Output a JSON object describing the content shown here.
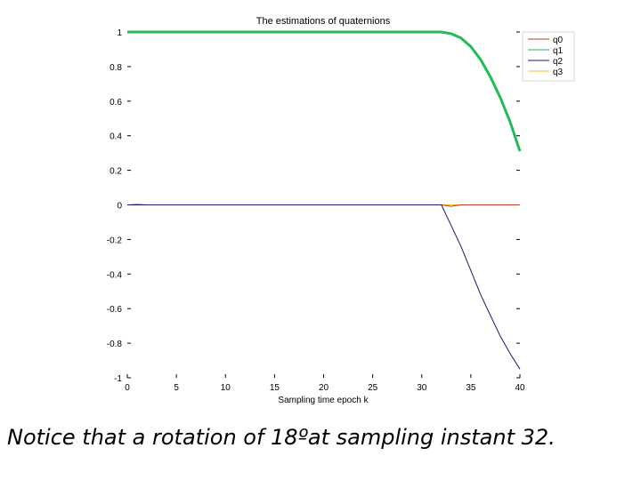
{
  "caption": "Notice that a rotation of 18ºat sampling instant 32.",
  "chart_data": {
    "type": "line",
    "title": "The estimations of quaternions",
    "xlabel": "Sampling time epoch k",
    "ylabel": "",
    "xlim": [
      0,
      40
    ],
    "ylim": [
      -1,
      1
    ],
    "xticks": [
      0,
      5,
      10,
      15,
      20,
      25,
      30,
      35,
      40
    ],
    "yticks": [
      1,
      0.8,
      0.6,
      0.4,
      0.2,
      0,
      -0.2,
      -0.4,
      -0.6,
      -0.8,
      -1
    ],
    "ytick_labels": [
      "1",
      "0.8",
      "0.6",
      "0.4",
      "0.2",
      "0",
      "-0.2",
      "-0.4",
      "-0.6",
      "-0.8",
      "-1"
    ],
    "legend_position": "top-right",
    "series": [
      {
        "name": "q0",
        "color": "#c0392b",
        "x": [
          0,
          1,
          2,
          32,
          33,
          34,
          40
        ],
        "y": [
          0,
          0.003,
          0,
          0,
          -0.008,
          0,
          0
        ]
      },
      {
        "name": "q1",
        "color": "#22bb55",
        "x": [
          0,
          32,
          33,
          34,
          35,
          36,
          37,
          38,
          39,
          40
        ],
        "y": [
          1,
          1,
          0.99,
          0.965,
          0.915,
          0.84,
          0.74,
          0.62,
          0.48,
          0.31
        ]
      },
      {
        "name": "q2",
        "color": "#1a1a6e",
        "x": [
          0,
          32,
          33,
          34,
          35,
          36,
          37,
          38,
          39,
          40
        ],
        "y": [
          0,
          0,
          -0.12,
          -0.24,
          -0.38,
          -0.52,
          -0.64,
          -0.76,
          -0.86,
          -0.95
        ]
      },
      {
        "name": "q3",
        "color": "#f0c020",
        "x": [
          0,
          40
        ],
        "y": [
          0,
          0
        ]
      }
    ]
  }
}
